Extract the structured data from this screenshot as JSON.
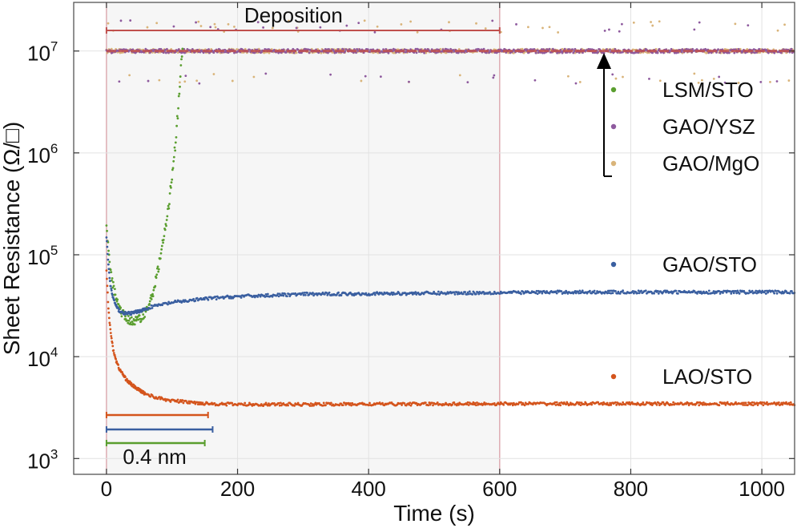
{
  "chart_data": {
    "type": "scatter",
    "xlabel": "Time (s)",
    "ylabel": "Sheet Resistance (Ω/□)",
    "xlim": [
      -50,
      1050
    ],
    "ylim": [
      700,
      30000000
    ],
    "yscale": "log",
    "grid": true,
    "x_ticks": [
      0,
      200,
      400,
      600,
      800,
      1000
    ],
    "x_tick_labels": [
      "0",
      "200",
      "400",
      "600",
      "800",
      "1000"
    ],
    "y_ticks": [
      1000,
      10000,
      100000,
      1000000,
      10000000
    ],
    "y_tick_labels": [
      {
        "base": "10",
        "exp": "3"
      },
      {
        "base": "10",
        "exp": "4"
      },
      {
        "base": "10",
        "exp": "5"
      },
      {
        "base": "10",
        "exp": "6"
      },
      {
        "base": "10",
        "exp": "7"
      }
    ],
    "deposition": {
      "label": "Deposition",
      "x_start": 0,
      "x_end": 600,
      "color": "#efefef",
      "line_color": "#d9a0a8",
      "bar_color": "#c0504d"
    },
    "thickness_label": "0.4 nm",
    "thickness_bars": [
      {
        "series": "LAO/STO",
        "x_start": 0,
        "x_end": 155
      },
      {
        "series": "GAO/STO",
        "x_start": 0,
        "x_end": 162
      },
      {
        "series": "LSM/STO",
        "x_start": 0,
        "x_end": 150
      }
    ],
    "legend_position": "right",
    "series": [
      {
        "name": "LSM/STO",
        "color": "#5a9e2f",
        "points": [
          [
            0,
            180000
          ],
          [
            5,
            80000
          ],
          [
            10,
            50000
          ],
          [
            15,
            38000
          ],
          [
            20,
            30000
          ],
          [
            25,
            26000
          ],
          [
            30,
            24000
          ],
          [
            35,
            23000
          ],
          [
            40,
            22000
          ],
          [
            45,
            22500
          ],
          [
            50,
            23500
          ],
          [
            55,
            25500
          ],
          [
            60,
            28000
          ],
          [
            65,
            32000
          ],
          [
            70,
            40000
          ],
          [
            75,
            55000
          ],
          [
            80,
            80000
          ],
          [
            85,
            120000
          ],
          [
            90,
            180000
          ],
          [
            95,
            300000
          ],
          [
            100,
            600000
          ],
          [
            105,
            1200000
          ],
          [
            110,
            3000000
          ],
          [
            113,
            6000000
          ],
          [
            116,
            10000000
          ]
        ]
      },
      {
        "name": "GAO/YSZ",
        "color": "#8e5a9e",
        "points": [
          [
            0,
            10000000
          ],
          [
            100,
            10000000
          ],
          [
            200,
            10000000
          ],
          [
            300,
            10000000
          ],
          [
            400,
            10000000
          ],
          [
            500,
            10000000
          ],
          [
            600,
            10000000
          ],
          [
            700,
            10000000
          ],
          [
            800,
            10000000
          ],
          [
            900,
            10000000
          ],
          [
            1000,
            10000000
          ],
          [
            1050,
            10000000
          ]
        ]
      },
      {
        "name": "GAO/MgO",
        "color": "#d9b47a",
        "points": [
          [
            0,
            10000000
          ],
          [
            100,
            10000000
          ],
          [
            200,
            10000000
          ],
          [
            300,
            10000000
          ],
          [
            400,
            10000000
          ],
          [
            500,
            10000000
          ],
          [
            600,
            10000000
          ],
          [
            700,
            10000000
          ],
          [
            800,
            10000000
          ],
          [
            900,
            10000000
          ],
          [
            1000,
            10000000
          ],
          [
            1050,
            10000000
          ]
        ]
      },
      {
        "name": "GAO/STO",
        "color": "#3a5fa0",
        "points": [
          [
            0,
            150000
          ],
          [
            3,
            80000
          ],
          [
            6,
            50000
          ],
          [
            10,
            38000
          ],
          [
            15,
            31000
          ],
          [
            20,
            28000
          ],
          [
            25,
            27000
          ],
          [
            30,
            26500
          ],
          [
            40,
            26800
          ],
          [
            50,
            28000
          ],
          [
            70,
            31000
          ],
          [
            100,
            34000
          ],
          [
            150,
            37000
          ],
          [
            200,
            39000
          ],
          [
            300,
            41000
          ],
          [
            400,
            41500
          ],
          [
            500,
            42000
          ],
          [
            600,
            42500
          ],
          [
            700,
            43000
          ],
          [
            800,
            43000
          ],
          [
            900,
            43000
          ],
          [
            1000,
            43000
          ],
          [
            1050,
            43000
          ]
        ]
      },
      {
        "name": "LAO/STO",
        "color": "#d4541c",
        "points": [
          [
            0,
            70000
          ],
          [
            3,
            30000
          ],
          [
            6,
            18000
          ],
          [
            10,
            12000
          ],
          [
            15,
            9000
          ],
          [
            20,
            7500
          ],
          [
            30,
            6000
          ],
          [
            40,
            5200
          ],
          [
            50,
            4700
          ],
          [
            60,
            4300
          ],
          [
            80,
            3900
          ],
          [
            100,
            3700
          ],
          [
            130,
            3550
          ],
          [
            160,
            3450
          ],
          [
            200,
            3400
          ],
          [
            300,
            3400
          ],
          [
            400,
            3420
          ],
          [
            500,
            3430
          ],
          [
            600,
            3450
          ],
          [
            700,
            3450
          ],
          [
            800,
            3450
          ],
          [
            900,
            3450
          ],
          [
            1000,
            3450
          ],
          [
            1050,
            3450
          ]
        ]
      }
    ]
  }
}
